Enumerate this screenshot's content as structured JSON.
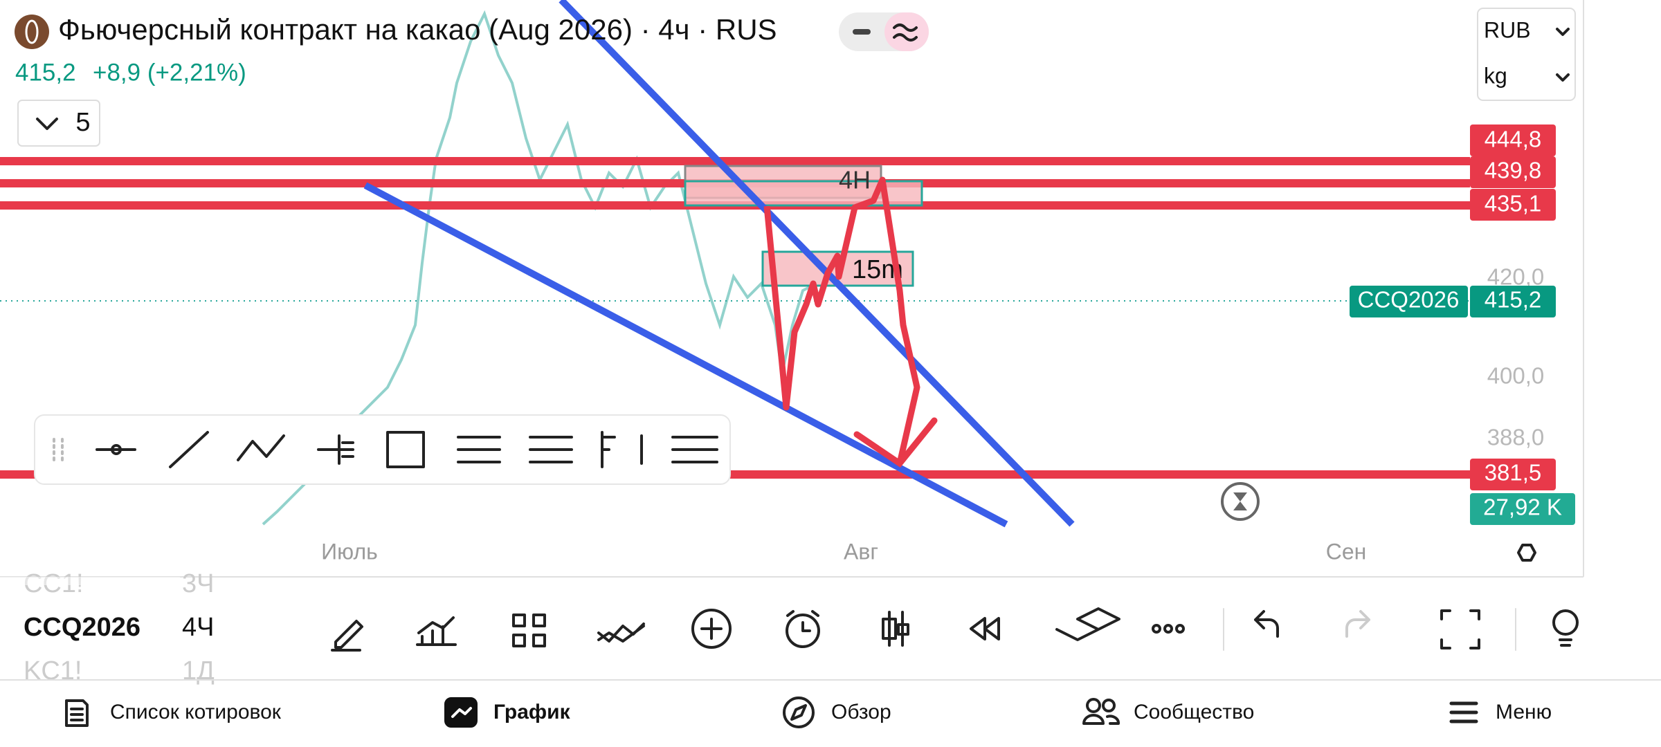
{
  "header": {
    "title": "Фьючерсный контракт на какао (Aug 2026) · 4ч · RUS",
    "price": "415,2",
    "change": "+8,9 (+2,21%)",
    "interval_button": "5"
  },
  "selectors": {
    "currency": "RUB",
    "unit": "kg"
  },
  "price_axis": {
    "labels": [
      "444,8",
      "439,8",
      "435,1",
      "420,0",
      "400,0",
      "388,0",
      "381,5"
    ],
    "symbol": "CCQ2026",
    "last_price": "415,2",
    "volume": "27,92 K"
  },
  "annotations": [
    "4H",
    "15m"
  ],
  "time_axis": [
    "Июль",
    "Авг",
    "Сен"
  ],
  "symbol_list": [
    [
      "CC1!",
      "3Ч"
    ],
    [
      "CCQ2026",
      "4Ч"
    ],
    [
      "KC1!",
      "1Д"
    ]
  ],
  "bottom_nav": [
    "Список котировок",
    "График",
    "Обзор",
    "Сообщество",
    "Меню"
  ]
}
